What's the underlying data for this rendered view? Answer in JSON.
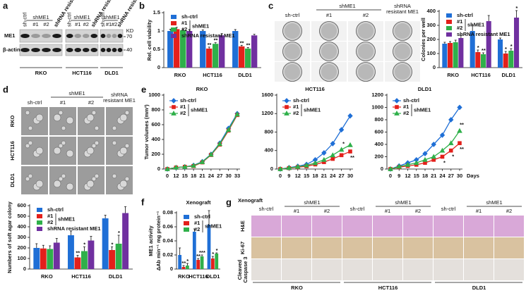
{
  "blot": {
    "label": "a",
    "lanes": [
      "sh-ctrl",
      "#1",
      "#2",
      "shRNA resistant ME1"
    ],
    "group": "shME1",
    "rows": [
      "ME1",
      "β-actin"
    ],
    "unit": "KD",
    "markers": [
      70,
      40
    ],
    "cell_lines": [
      "RKO",
      "HCT116",
      "DLD1"
    ]
  },
  "colony_images": {
    "label": "c",
    "columns": [
      "sh-ctrl",
      "#1",
      "#2",
      [
        "shRNA",
        "resistant ME1"
      ]
    ],
    "group": "shME1",
    "rows": [
      "RKO",
      "HCT116",
      "DLD1"
    ]
  },
  "soft_agar_images": {
    "label": "d",
    "columns": [
      "sh-ctrl",
      "#1",
      "#2",
      [
        "shRNA",
        "resistant ME1"
      ]
    ],
    "group": "shME1",
    "rows": [
      "RKO",
      "HCT116",
      "DLD1"
    ]
  },
  "ihc_images": {
    "label": "g",
    "title": "Xenograft",
    "lanes": [
      "sh-ctrl",
      "#1",
      "#2"
    ],
    "group": "shME1",
    "rows": [
      "H&E",
      "Ki-67",
      [
        "Cleaved",
        "Caspase 3"
      ]
    ],
    "cell_lines": [
      "RKO",
      "HCT116",
      "DLD1"
    ]
  },
  "chart_data": [
    {
      "type": "bar",
      "label": "b",
      "ylabel": "Rel. cell viability",
      "categories": [
        "RKO",
        "HCT116",
        "DLD1"
      ],
      "series": [
        {
          "name": "sh-ctrl",
          "color": "#1f6fd6",
          "values": [
            1.0,
            1.0,
            1.0
          ],
          "errors": [
            0.05,
            0.03,
            0.04
          ]
        },
        {
          "name": "#1",
          "color": "#e3201b",
          "values": [
            1.05,
            0.52,
            0.58
          ],
          "errors": [
            0.05,
            0.04,
            0.03
          ],
          "significance": [
            null,
            "**",
            "**"
          ]
        },
        {
          "name": "#2",
          "color": "#2fb04a",
          "values": [
            1.02,
            0.65,
            0.52
          ],
          "errors": [
            0.04,
            0.03,
            0.03
          ],
          "significance": [
            null,
            "**",
            "**"
          ]
        },
        {
          "name": "shRNA resistant ME1",
          "color": "#7030a0",
          "values": [
            1.0,
            0.88,
            0.88
          ],
          "errors": [
            0.04,
            0.05,
            0.03
          ]
        }
      ],
      "legend_group": {
        "name": "shME1",
        "series": [
          1,
          2
        ]
      },
      "ylim": [
        0,
        1.5
      ],
      "yticks": [
        0,
        0.5,
        1,
        1.5
      ]
    },
    {
      "type": "bar",
      "ylabel": "Colonies per well",
      "categories": [
        "RKO",
        "HCT116",
        "DLD1"
      ],
      "series": [
        {
          "name": "sh-ctrl",
          "color": "#1f6fd6",
          "values": [
            170,
            260,
            200
          ],
          "errors": [
            10,
            40,
            10
          ]
        },
        {
          "name": "#1",
          "color": "#e3201b",
          "values": [
            175,
            110,
            100
          ],
          "errors": [
            10,
            15,
            15
          ],
          "significance": [
            null,
            "*",
            "*"
          ]
        },
        {
          "name": "#2",
          "color": "#2fb04a",
          "values": [
            180,
            95,
            120
          ],
          "errors": [
            15,
            10,
            15
          ],
          "significance": [
            null,
            "**",
            "*"
          ]
        },
        {
          "name": "shRNA resistant ME1",
          "color": "#7030a0",
          "values": [
            210,
            330,
            355
          ],
          "errors": [
            20,
            40,
            50
          ],
          "significance": [
            null,
            null,
            "*"
          ]
        }
      ],
      "legend_group": {
        "name": "shME1",
        "series": [
          1,
          2
        ]
      },
      "ylim": [
        0,
        400
      ],
      "yticks": [
        0,
        100,
        200,
        300,
        400
      ]
    },
    {
      "type": "bar",
      "ylabel": "Numbers of soft agar colony",
      "categories": [
        "RKO",
        "HCT116",
        "DLD1"
      ],
      "series": [
        {
          "name": "sh-ctrl",
          "color": "#1f6fd6",
          "values": [
            200,
            320,
            480
          ],
          "errors": [
            40,
            40,
            30
          ]
        },
        {
          "name": "#1",
          "color": "#e3201b",
          "values": [
            195,
            110,
            180
          ],
          "errors": [
            30,
            20,
            30
          ],
          "significance": [
            null,
            "**",
            "*"
          ]
        },
        {
          "name": "#2",
          "color": "#2fb04a",
          "values": [
            190,
            170,
            240
          ],
          "errors": [
            30,
            40,
            80
          ],
          "significance": [
            null,
            "*",
            "*"
          ]
        },
        {
          "name": "shRNA resistant ME1",
          "color": "#7030a0",
          "values": [
            250,
            270,
            530
          ],
          "errors": [
            40,
            40,
            60
          ]
        }
      ],
      "legend_group": {
        "name": "shME1",
        "series": [
          1,
          2
        ]
      },
      "ylim": [
        0,
        600
      ],
      "yticks": [
        0,
        100,
        200,
        300,
        400,
        500,
        600
      ]
    },
    {
      "type": "line",
      "label": "e",
      "title": "RKO",
      "ylabel": "Tumor volumes (mm³)",
      "categories": [
        "0",
        "12",
        "15",
        "18",
        "21",
        "24",
        "27",
        "30",
        "33"
      ],
      "series": [
        {
          "name": "sh-ctrl",
          "color": "#1f6fd6",
          "marker": "diamond",
          "values": [
            0,
            20,
            30,
            50,
            100,
            200,
            350,
            550,
            750
          ]
        },
        {
          "name": "#1",
          "color": "#e3201b",
          "marker": "square",
          "values": [
            0,
            20,
            30,
            40,
            90,
            190,
            330,
            520,
            730
          ]
        },
        {
          "name": "#2",
          "color": "#2fb04a",
          "marker": "triangle",
          "values": [
            0,
            20,
            30,
            45,
            95,
            195,
            340,
            530,
            740
          ]
        }
      ],
      "legend_group": {
        "name": "shME1",
        "series": [
          1,
          2
        ]
      },
      "ylim": [
        0,
        1000
      ],
      "yticks": [
        0,
        200,
        400,
        600,
        800,
        1000
      ]
    },
    {
      "type": "line",
      "title": "HCT116",
      "categories": [
        "0",
        "9",
        "12",
        "15",
        "18",
        "21",
        "24",
        "27",
        "30"
      ],
      "series": [
        {
          "name": "sh-ctrl",
          "color": "#1f6fd6",
          "marker": "diamond",
          "values": [
            0,
            30,
            60,
            100,
            200,
            350,
            550,
            850,
            1150
          ]
        },
        {
          "name": "#1",
          "color": "#e3201b",
          "marker": "square",
          "values": [
            0,
            20,
            40,
            60,
            100,
            150,
            220,
            300,
            380
          ],
          "significance": [
            null,
            null,
            null,
            null,
            null,
            null,
            null,
            null,
            "**"
          ]
        },
        {
          "name": "#2",
          "color": "#2fb04a",
          "marker": "triangle",
          "values": [
            0,
            25,
            50,
            80,
            130,
            200,
            300,
            420,
            520
          ],
          "significance": [
            null,
            null,
            null,
            null,
            null,
            null,
            null,
            "*",
            null
          ]
        }
      ],
      "legend_group": {
        "name": "shME1",
        "series": [
          1,
          2
        ]
      },
      "ylim": [
        0,
        1600
      ],
      "yticks": [
        0,
        400,
        800,
        1200,
        1600
      ]
    },
    {
      "type": "line",
      "title": "DLD1",
      "xlabel": "Days",
      "categories": [
        "0",
        "9",
        "12",
        "15",
        "18",
        "21",
        "24",
        "27",
        "30"
      ],
      "series": [
        {
          "name": "sh-ctrl",
          "color": "#1f6fd6",
          "marker": "diamond",
          "values": [
            0,
            50,
            100,
            150,
            250,
            400,
            550,
            800,
            1000
          ]
        },
        {
          "name": "#1",
          "color": "#e3201b",
          "marker": "square",
          "values": [
            0,
            30,
            50,
            70,
            100,
            150,
            200,
            300,
            420
          ],
          "significance": [
            null,
            null,
            null,
            null,
            null,
            null,
            "*",
            "*",
            "**"
          ]
        },
        {
          "name": "#2",
          "color": "#2fb04a",
          "marker": "triangle",
          "values": [
            0,
            40,
            70,
            100,
            150,
            200,
            300,
            420,
            620
          ],
          "significance": [
            null,
            null,
            null,
            null,
            null,
            null,
            null,
            null,
            "**"
          ]
        }
      ],
      "legend_group": {
        "name": "shME1",
        "series": [
          1,
          2
        ]
      },
      "ylim": [
        0,
        1200
      ],
      "yticks": [
        0,
        200,
        400,
        600,
        800,
        1000,
        1200
      ]
    },
    {
      "type": "bar",
      "label": "f",
      "title": "Xenograft",
      "ylabel": [
        "ME1 activity",
        "ΔAb min⁻¹ mg protein⁻¹"
      ],
      "categories": [
        "RKO",
        "HCT116",
        "DLD1"
      ],
      "series": [
        {
          "name": "sh-ctrl",
          "color": "#1f6fd6",
          "values": [
            0.02,
            0.053,
            0.063
          ],
          "errors": [
            0.01,
            0.004,
            0.02
          ]
        },
        {
          "name": "#1",
          "color": "#e3201b",
          "values": [
            0.003,
            0.013,
            0.015
          ],
          "errors": [
            0.002,
            0.002,
            0.003
          ],
          "significance": [
            "**",
            "**",
            "*"
          ]
        },
        {
          "name": "#2",
          "color": "#2fb04a",
          "values": [
            0.005,
            0.018,
            0.022
          ],
          "errors": [
            0.003,
            0.002,
            0.001
          ],
          "significance": [
            "*",
            "***",
            "*"
          ]
        }
      ],
      "legend_group": {
        "name": "shME1",
        "series": [
          1,
          2
        ]
      },
      "ylim": [
        0,
        0.08
      ],
      "yticks": [
        0,
        0.02,
        0.04,
        0.06,
        0.08
      ]
    }
  ]
}
